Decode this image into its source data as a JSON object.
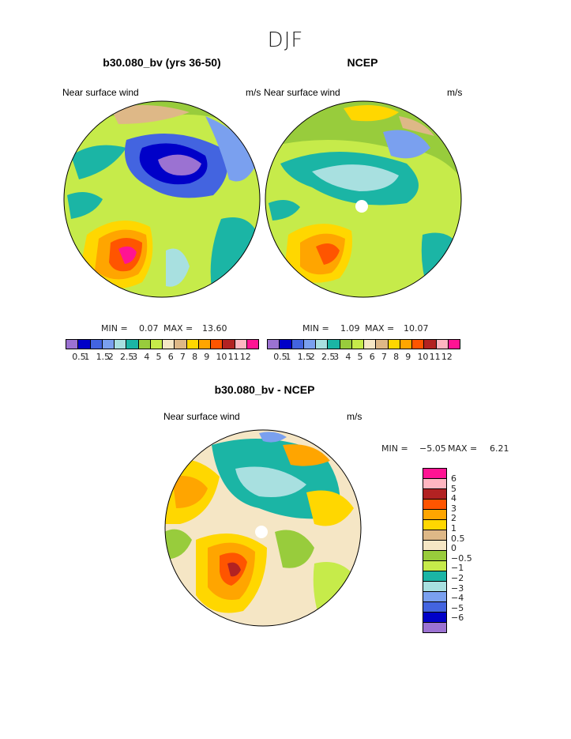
{
  "suptitle": "DJF",
  "panels": [
    {
      "title": "b30.080_bv (yrs 36-50)",
      "left_label": "Near surface wind",
      "right_label": "m/s",
      "min_label": "MIN =",
      "min": "0.07",
      "max_label": "MAX =",
      "max": "13.60"
    },
    {
      "title": "NCEP",
      "left_label": "Near surface wind",
      "right_label": "m/s",
      "min_label": "MIN =",
      "min": "1.09",
      "max_label": "MAX =",
      "max": "10.07"
    },
    {
      "title": "b30.080_bv - NCEP",
      "left_label": "Near surface wind",
      "right_label": "m/s",
      "min_label": "MIN =",
      "min": "−5.05",
      "max_label": "MAX =",
      "max": "6.21"
    }
  ],
  "colorbar_abs": {
    "labels": [
      "0.5",
      "1",
      "1.5",
      "2",
      "2.5",
      "3",
      "4",
      "5",
      "6",
      "7",
      "8",
      "9",
      "10",
      "11",
      "12"
    ],
    "colors": [
      "#9b72d2",
      "#0000c8",
      "#4364e0",
      "#7aa0ef",
      "#a8e0e0",
      "#1bb5a5",
      "#98cc3c",
      "#c6eb4a",
      "#f5e6c5",
      "#deb887",
      "#ffd700",
      "#ffa500",
      "#ff5500",
      "#b22222",
      "#ffb6c1",
      "#ff1493"
    ]
  },
  "colorbar_diff": {
    "labels": [
      "6",
      "5",
      "4",
      "3",
      "2",
      "1",
      "0.5",
      "0",
      "−0.5",
      "−1",
      "−2",
      "−3",
      "−4",
      "−5",
      "−6"
    ],
    "colors": [
      "#ff1493",
      "#ffb6c1",
      "#b22222",
      "#ff5500",
      "#ffa500",
      "#ffd700",
      "#deb887",
      "#f5e6c5",
      "#98cc3c",
      "#c6eb4a",
      "#1bb5a5",
      "#a8e0e0",
      "#7aa0ef",
      "#4364e0",
      "#0000c8",
      "#9b72d2"
    ]
  }
}
